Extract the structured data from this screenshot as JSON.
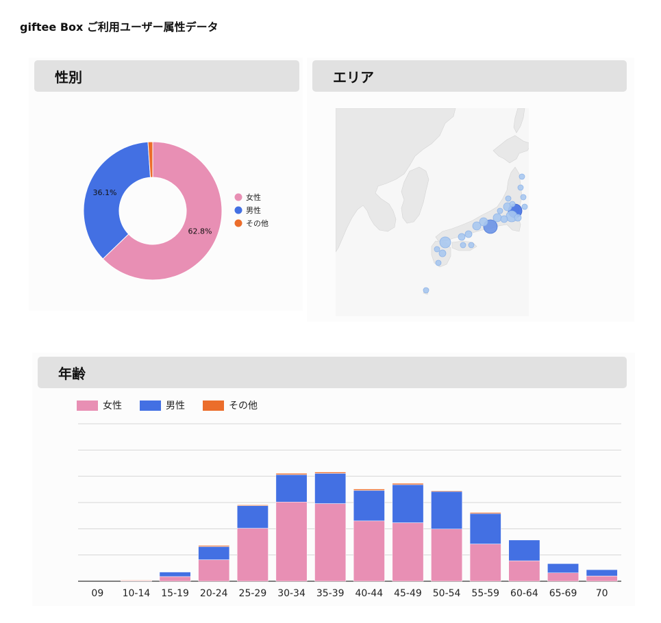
{
  "page_title": "giftee Box ご利用ユーザー属性データ",
  "sections": {
    "gender": "性別",
    "area": "エリア",
    "age": "年齢"
  },
  "colors": {
    "female": "#e88fb4",
    "male": "#4370e3",
    "other": "#eb6d2b",
    "panel_header": "#e1e1e1",
    "map_land": "#e8e8e8",
    "map_sea": "#f7f7f7",
    "bubble": "#a8c8f0"
  },
  "legend": [
    "女性",
    "男性",
    "その他"
  ],
  "chart_data": [
    {
      "type": "pie",
      "variant": "donut",
      "title": "性別",
      "labels": [
        "女性",
        "男性",
        "その他"
      ],
      "values": [
        62.8,
        36.1,
        1.1
      ],
      "data_labels": [
        "62.8%",
        "36.1%",
        ""
      ],
      "legend_position": "right"
    },
    {
      "type": "bar",
      "stacked": true,
      "title": "年齢",
      "categories": [
        "09",
        "10-14",
        "15-19",
        "20-24",
        "25-29",
        "30-34",
        "35-39",
        "40-44",
        "45-49",
        "50-54",
        "55-59",
        "60-64",
        "65-69",
        "70"
      ],
      "series": [
        {
          "name": "女性",
          "values": [
            0,
            0.2,
            1.8,
            8.2,
            20.2,
            30.2,
            29.6,
            23.0,
            22.3,
            19.9,
            14.2,
            7.8,
            3.2,
            2.0
          ]
        },
        {
          "name": "男性",
          "values": [
            0,
            0.1,
            1.7,
            5.0,
            8.6,
            10.4,
            11.5,
            11.6,
            14.5,
            14.3,
            11.6,
            7.9,
            3.5,
            2.4
          ]
        },
        {
          "name": "その他",
          "values": [
            0,
            0.2,
            0,
            0.4,
            0.3,
            0.5,
            0.5,
            0.5,
            0.5,
            0.3,
            0.4,
            0,
            0,
            0
          ]
        }
      ],
      "ylim": [
        0,
        60
      ],
      "grid": true,
      "y_tick_labels_shown": false,
      "legend_position": "top-left"
    }
  ],
  "map": {
    "type": "bubble-map",
    "region": "Japan",
    "title": "エリア"
  }
}
